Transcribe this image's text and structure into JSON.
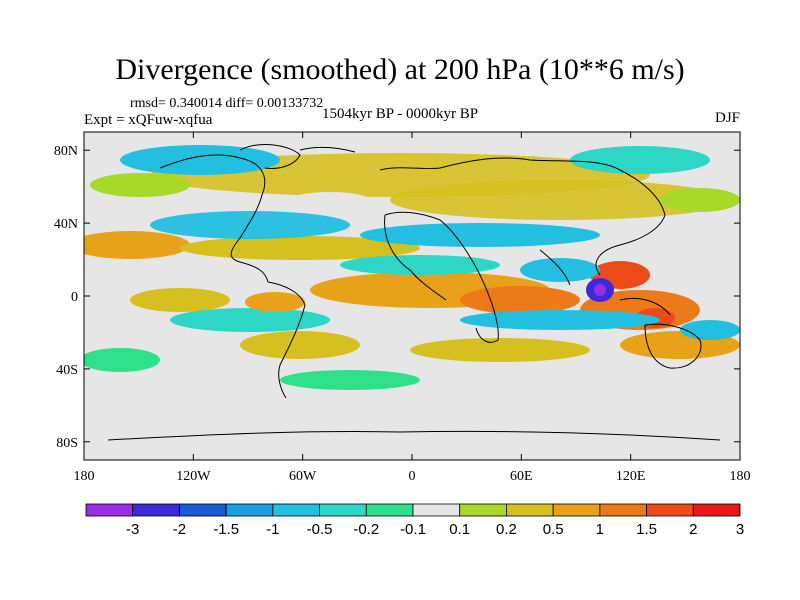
{
  "title": "Divergence (smoothed) at 200 hPa (10**6 m/s)",
  "stats": "rmsd= 0.340014 diff= 0.00133732",
  "experiment": "Expt = xQFuw-xqfua",
  "period": "1504kyr BP - 0000kyr BP",
  "season": "DJF",
  "chart_data": {
    "type": "heatmap",
    "x_ticks": [
      "180",
      "120W",
      "60W",
      "0",
      "60E",
      "120E",
      "180"
    ],
    "y_ticks": [
      "80N",
      "40N",
      "0",
      "40S",
      "80S"
    ],
    "lon_range": [
      -180,
      180
    ],
    "lat_range": [
      -90,
      90
    ],
    "colorbar": {
      "labels": [
        "-3",
        "-2",
        "-1.5",
        "-1",
        "-0.5",
        "-0.2",
        "-0.1",
        "0.1",
        "0.2",
        "0.5",
        "1",
        "1.5",
        "2",
        "3"
      ],
      "colors": [
        "#9a2ee6",
        "#3c2ad8",
        "#1a5ad6",
        "#1aa0e0",
        "#22bfe0",
        "#2ed6c6",
        "#2ee08a",
        "#e6e6e6",
        "#a8d82a",
        "#d6c020",
        "#e8a21a",
        "#ec7a18",
        "#ec4a18",
        "#e61a1a"
      ]
    }
  }
}
